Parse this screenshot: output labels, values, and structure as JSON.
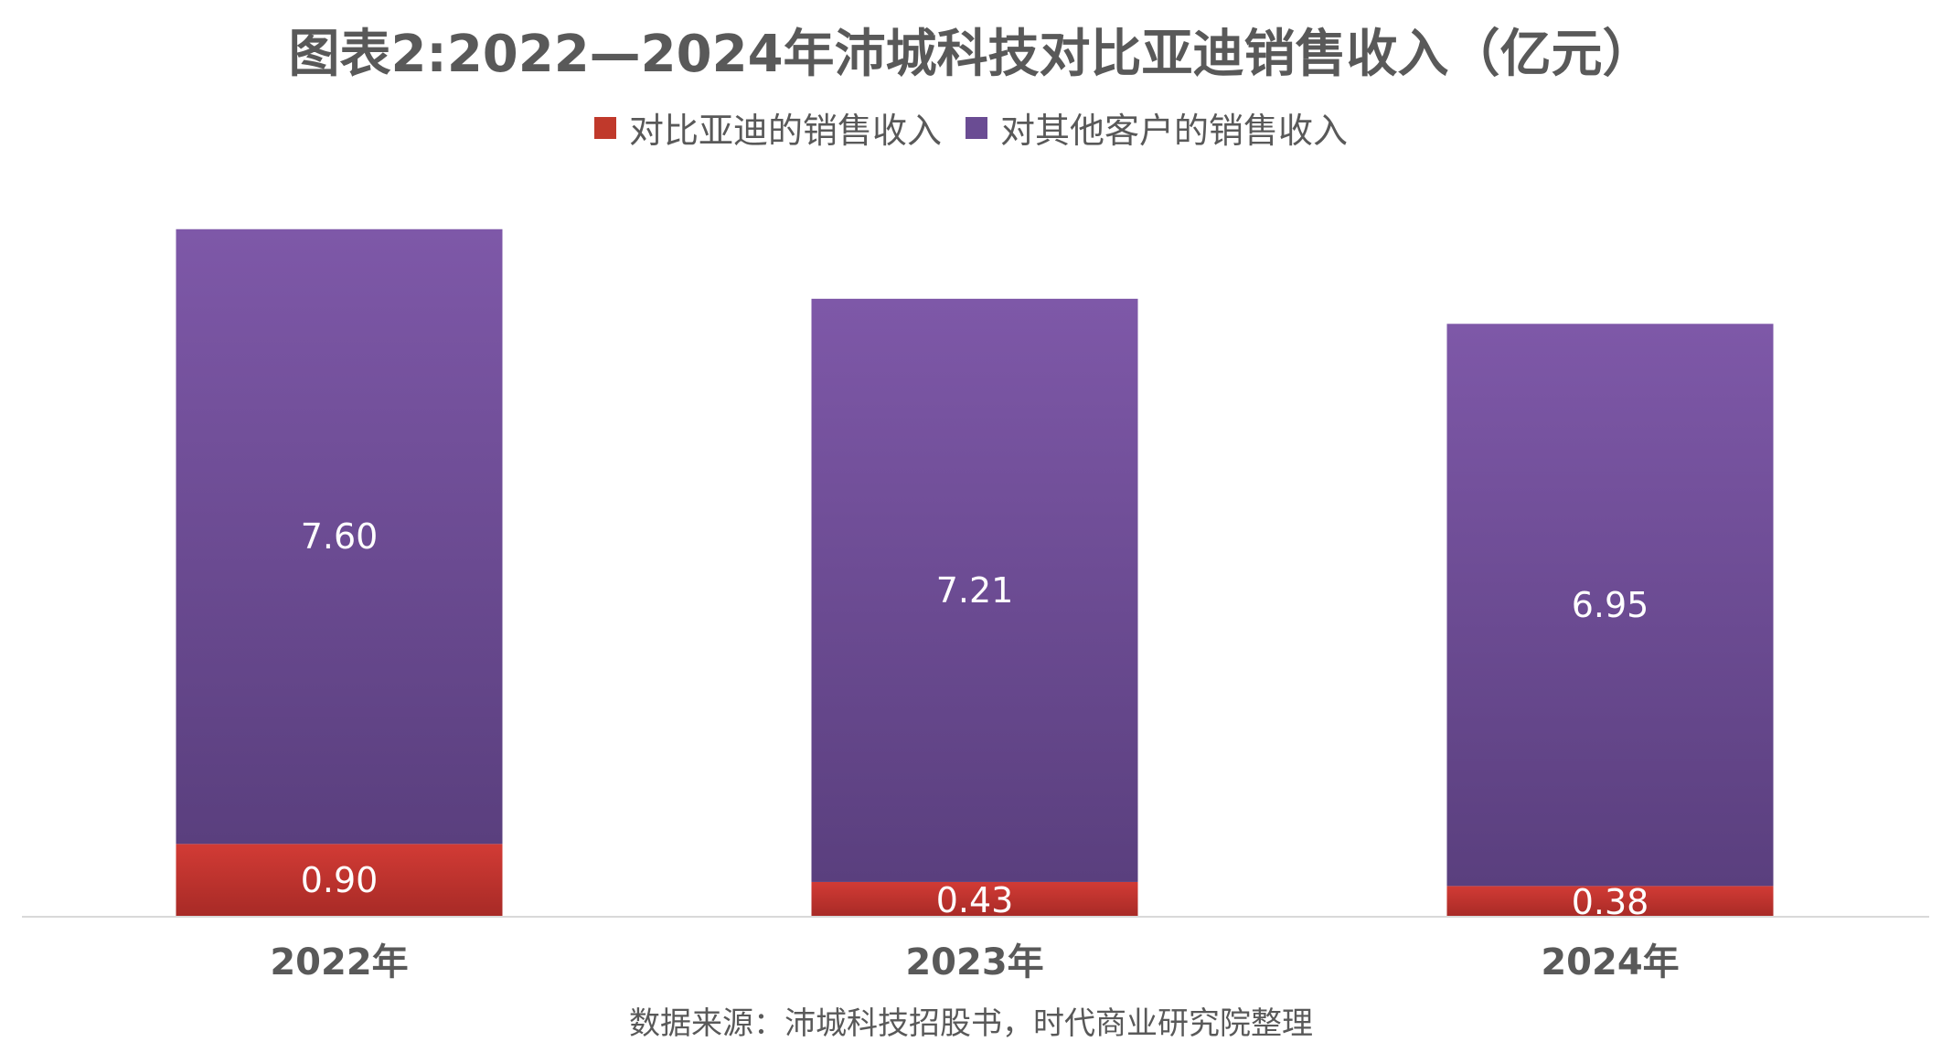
{
  "title": "图表2:2022—2024年沛城科技对比亚迪销售收入（亿元）",
  "source": "数据来源：沛城科技招股书，时代商业研究院整理",
  "colors": {
    "byd_series": "#C0392B",
    "other_series": "#6A4C93",
    "text": "#595959",
    "axis": "#D9D9D9",
    "data_label": "#FFFFFF"
  },
  "chart_data": {
    "type": "bar",
    "stacked": true,
    "categories": [
      "2022年",
      "2023年",
      "2024年"
    ],
    "series": [
      {
        "name": "对比亚迪的销售收入",
        "values": [
          0.9,
          0.43,
          0.38
        ],
        "labels": [
          "0.90",
          "0.43",
          "0.38"
        ]
      },
      {
        "name": "对其他客户的销售收入",
        "values": [
          7.6,
          7.21,
          6.95
        ],
        "labels": [
          "7.60",
          "7.21",
          "6.95"
        ]
      }
    ],
    "ylim": [
      0,
      8.5
    ],
    "grid": false,
    "legend": "top-center"
  }
}
